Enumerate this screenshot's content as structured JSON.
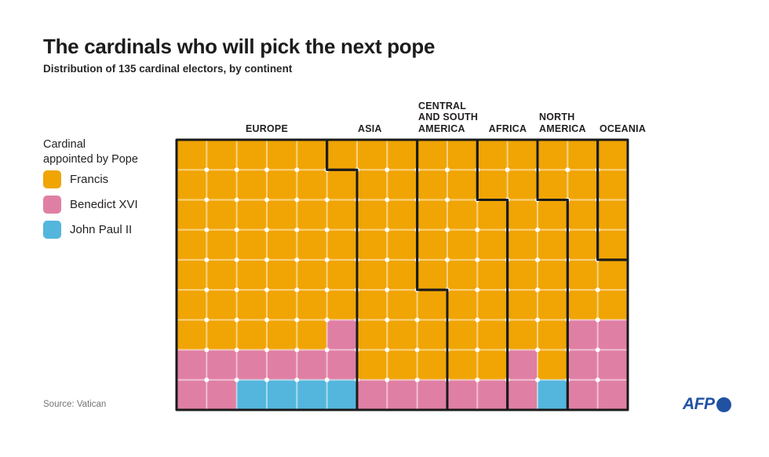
{
  "title": "The cardinals who will pick the next pope",
  "subtitle": "Distribution of 135 cardinal electors, by continent",
  "source": "Source: Vatican",
  "brand": {
    "name": "AFP",
    "color": "#2151A3"
  },
  "legend": {
    "title_lines": [
      "Cardinal",
      "appointed by Pope"
    ],
    "items": [
      {
        "code": "F",
        "label": "Francis",
        "color": "#F0A505"
      },
      {
        "code": "B",
        "label": "Benedict XVI",
        "color": "#E07FA4"
      },
      {
        "code": "J",
        "label": "John Paul II",
        "color": "#54B6DD"
      }
    ]
  },
  "chart_data": {
    "type": "waffle",
    "title": "The cardinals who will pick the next pope",
    "subtitle": "Distribution of 135 cardinal electors, by continent",
    "total_electors": 135,
    "unit": "1 square = 1 cardinal elector",
    "grid": {
      "cols": 15,
      "rows": 9
    },
    "legend_title": "Cardinal appointed by Pope",
    "outline_color": "#1A1A1A",
    "gridline_color": "#FFFFFF",
    "cell_rows": [
      "FFFFFFFFFFFFFFF",
      "FFFFFFFFFFFFFFF",
      "FFFFFFFFFFFFFFF",
      "FFFFFFFFFFFFFFF",
      "FFFFFFFFFFFFFFF",
      "FFFFFFFFFFFFFFF",
      "FFFFFBFFFFFFFBB",
      "BBBBBBFFFFFBFBB",
      "BBJJJJBBBBBBJBB"
    ],
    "continents": [
      {
        "name": "Europe",
        "label_lines": [
          "EUROPE"
        ],
        "electors": 53,
        "appointed_by": {
          "Francis": 40,
          "Benedict XVI": 9,
          "John Paul II": 4
        },
        "columns": [
          {
            "col": 1,
            "rows": [
              1,
              9
            ]
          },
          {
            "col": 2,
            "rows": [
              1,
              9
            ]
          },
          {
            "col": 3,
            "rows": [
              1,
              9
            ]
          },
          {
            "col": 4,
            "rows": [
              1,
              9
            ]
          },
          {
            "col": 5,
            "rows": [
              1,
              9
            ]
          },
          {
            "col": 6,
            "rows": [
              2,
              9
            ]
          }
        ]
      },
      {
        "name": "Asia",
        "label_lines": [
          "ASIA"
        ],
        "electors": 23,
        "appointed_by": {
          "Francis": 20,
          "Benedict XVI": 3,
          "John Paul II": 0
        },
        "columns": [
          {
            "col": 6,
            "rows": [
              1,
              1
            ]
          },
          {
            "col": 7,
            "rows": [
              1,
              9
            ]
          },
          {
            "col": 8,
            "rows": [
              1,
              9
            ]
          },
          {
            "col": 9,
            "rows": [
              6,
              9
            ]
          }
        ]
      },
      {
        "name": "Central and South America",
        "label_lines": [
          "CENTRAL",
          "AND SOUTH",
          "AMERICA"
        ],
        "electors": 21,
        "appointed_by": {
          "Francis": 19,
          "Benedict XVI": 2,
          "John Paul II": 0
        },
        "columns": [
          {
            "col": 9,
            "rows": [
              1,
              5
            ]
          },
          {
            "col": 10,
            "rows": [
              1,
              9
            ]
          },
          {
            "col": 11,
            "rows": [
              3,
              9
            ]
          }
        ]
      },
      {
        "name": "Africa",
        "label_lines": [
          "AFRICA"
        ],
        "electors": 18,
        "appointed_by": {
          "Francis": 15,
          "Benedict XVI": 2,
          "John Paul II": 1
        },
        "columns": [
          {
            "col": 11,
            "rows": [
              1,
              2
            ]
          },
          {
            "col": 12,
            "rows": [
              1,
              9
            ]
          },
          {
            "col": 13,
            "rows": [
              3,
              9
            ]
          }
        ]
      },
      {
        "name": "North America",
        "label_lines": [
          "NORTH",
          "AMERICA"
        ],
        "electors": 16,
        "appointed_by": {
          "Francis": 10,
          "Benedict XVI": 6,
          "John Paul II": 0
        },
        "columns": [
          {
            "col": 13,
            "rows": [
              1,
              2
            ]
          },
          {
            "col": 14,
            "rows": [
              1,
              9
            ]
          },
          {
            "col": 15,
            "rows": [
              5,
              9
            ]
          }
        ]
      },
      {
        "name": "Oceania",
        "label_lines": [
          "OCEANIA"
        ],
        "electors": 4,
        "appointed_by": {
          "Francis": 4,
          "Benedict XVI": 0,
          "John Paul II": 0
        },
        "columns": [
          {
            "col": 15,
            "rows": [
              1,
              4
            ]
          }
        ]
      }
    ]
  }
}
